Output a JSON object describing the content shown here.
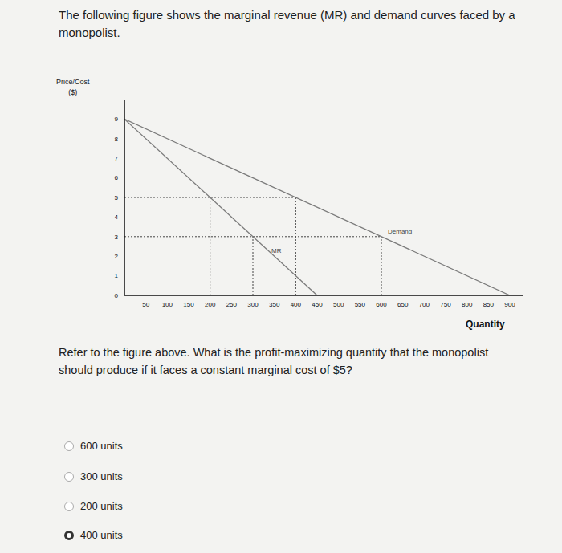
{
  "header": "The following figure shows the marginal revenue (MR) and demand curves faced by a monopolist.",
  "chart_data": {
    "type": "line",
    "y_label": [
      "Price/Cost",
      "($)"
    ],
    "x_label": "Quantity",
    "series": [
      {
        "name": "Demand",
        "color": "#7a7a7a",
        "x": [
          0,
          900
        ],
        "values": [
          9,
          0
        ]
      },
      {
        "name": "MR",
        "color": "#7a7a7a",
        "x": [
          0,
          450
        ],
        "values": [
          9,
          0
        ]
      }
    ],
    "xlim": [
      0,
      930
    ],
    "xticks": [
      50,
      100,
      150,
      200,
      250,
      300,
      350,
      400,
      450,
      500,
      550,
      600,
      650,
      700,
      750,
      800,
      850,
      900
    ],
    "ylim": [
      0,
      10
    ],
    "yticks": [
      0,
      1,
      2,
      3,
      4,
      5,
      6,
      7,
      8,
      9
    ],
    "guides": [
      {
        "x": [
          0,
          400
        ],
        "y": [
          5,
          5
        ]
      },
      {
        "x": [
          0,
          600
        ],
        "y": [
          3,
          3
        ]
      },
      {
        "x": [
          200,
          200
        ],
        "y": [
          0,
          5
        ]
      },
      {
        "x": [
          300,
          300
        ],
        "y": [
          0,
          3
        ]
      },
      {
        "x": [
          400,
          400
        ],
        "y": [
          0,
          5
        ]
      },
      {
        "x": [
          600,
          600
        ],
        "y": [
          0,
          3
        ]
      }
    ]
  },
  "question": "Refer to the figure above. What is the profit-maximizing quantity that the monopolist should produce if it faces a constant marginal cost of $5?",
  "options": [
    "600 units",
    "300 units",
    "200 units",
    "400 units"
  ],
  "selected": 3
}
